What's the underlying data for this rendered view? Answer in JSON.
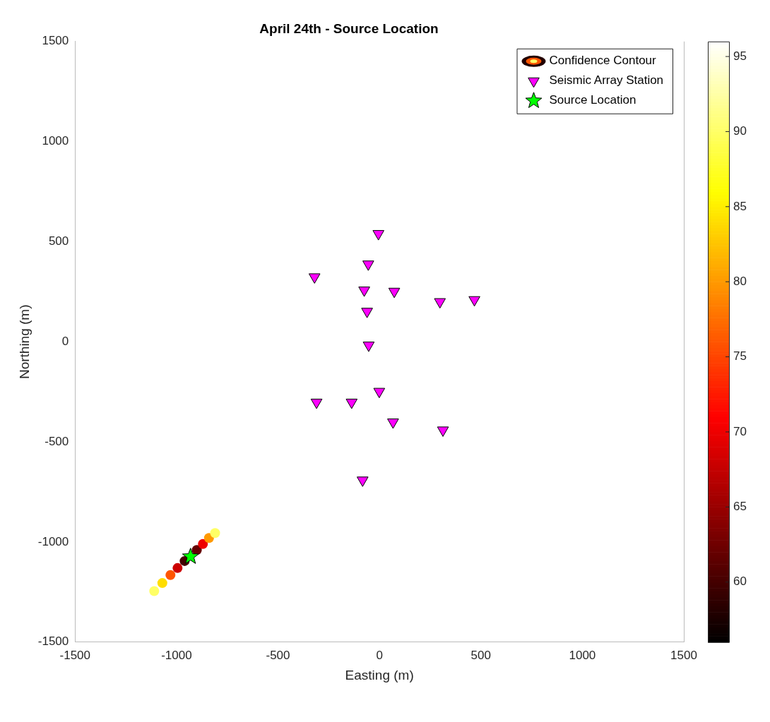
{
  "chart_data": {
    "type": "scatter",
    "title": "April 24th - Source Location",
    "xlabel": "Easting (m)",
    "ylabel": "Northing (m)",
    "xlim": [
      -1500,
      1500
    ],
    "xticks": [
      -1500,
      -1000,
      -500,
      0,
      500,
      1000,
      1500
    ],
    "ylim": [
      -1500,
      1500
    ],
    "yticks": [
      -1500,
      -1000,
      -500,
      0,
      500,
      1000,
      1500
    ],
    "clim": [
      56,
      96
    ],
    "cticks": [
      60,
      65,
      70,
      75,
      80,
      85,
      90,
      95
    ],
    "grid": false,
    "legend": "top right",
    "series": [
      {
        "name": "Confidence Contour",
        "type": "scatter",
        "marker": "circle",
        "x": [
          -1110,
          -1070,
          -1030,
          -995,
          -960,
          -930,
          -900,
          -870,
          -840,
          -810
        ],
        "values": [
          -1245,
          -1205,
          -1165,
          -1130,
          -1095,
          null,
          -1040,
          -1010,
          -980,
          -955
        ],
        "colors": [
          "#ffff66",
          "#ffdd00",
          "#ff5500",
          "#cc0000",
          "#440000",
          "#220000",
          "#660000",
          "#ee0000",
          "#ff9900",
          "#ffff66"
        ]
      },
      {
        "name": "Seismic Array Station",
        "type": "scatter",
        "marker": "triangle",
        "color": "#ff00ff",
        "x": [
          -5,
          -55,
          -320,
          -75,
          73,
          298,
          468,
          -61,
          -53,
          -1,
          -310,
          -137,
          67,
          313,
          -83
        ],
        "values": [
          540,
          388,
          324,
          258,
          252,
          200,
          210,
          152,
          -17,
          -248,
          -302,
          -302,
          -401,
          -441,
          -691
        ]
      },
      {
        "name": "Source Location",
        "type": "scatter",
        "marker": "star",
        "color": "#00ff00",
        "x": [
          -931
        ],
        "values": [
          -1073
        ]
      }
    ]
  }
}
